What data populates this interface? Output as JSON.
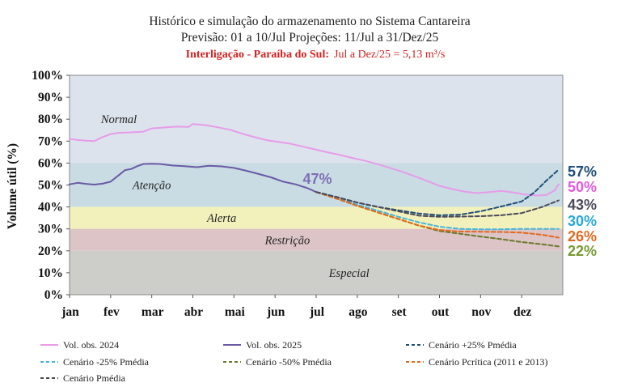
{
  "chart_data": {
    "type": "line",
    "title": "Histórico e simulação do armazenamento no Sistema Cantareira",
    "subtitle": "Previsão: 01 a 10/Jul Projeções: 11/Jul a 31/Dez/25",
    "note_bold": "Interligação - Paraíba do Sul:",
    "note_text": "Jul a Dez/25 = 5,13 m³/s",
    "ylabel": "Volume útil (%)",
    "xlabel": "",
    "ylim": [
      0,
      100
    ],
    "yticks": [
      "0%",
      "10%",
      "20%",
      "30%",
      "40%",
      "50%",
      "60%",
      "70%",
      "80%",
      "90%",
      "100%"
    ],
    "xlim": [
      0,
      12
    ],
    "months": [
      "jan",
      "fev",
      "mar",
      "abr",
      "mai",
      "jun",
      "jul",
      "ago",
      "set",
      "out",
      "nov",
      "dez"
    ],
    "zones": [
      {
        "name": "Normal",
        "from": 60,
        "to": 100,
        "color": "#dde3ed"
      },
      {
        "name": "Atenção",
        "from": 40,
        "to": 60,
        "color": "#c9dce3"
      },
      {
        "name": "Alerta",
        "from": 30,
        "to": 40,
        "color": "#f3f1bb"
      },
      {
        "name": "Restrição",
        "from": 20,
        "to": 30,
        "color": "#dcc4c7"
      },
      {
        "name": "Especial",
        "from": 0,
        "to": 20,
        "color": "#cdcdc9"
      }
    ],
    "current_label": "47%",
    "series": [
      {
        "name": "Vol. obs. 2025",
        "color": "#6a5aa5",
        "dash": false,
        "width": 2,
        "x": [
          0,
          0.2,
          0.4,
          0.6,
          0.8,
          1.0,
          1.2,
          1.35,
          1.5,
          1.65,
          1.8,
          2.0,
          2.2,
          2.5,
          2.8,
          3.1,
          3.4,
          3.7,
          4.0,
          4.3,
          4.6,
          4.9,
          5.2,
          5.5,
          5.8,
          6.0
        ],
        "y": [
          50.3,
          51,
          50.5,
          50.2,
          50.6,
          51.5,
          54.5,
          56.8,
          57.3,
          58.6,
          59.6,
          59.7,
          59.6,
          58.9,
          58.6,
          58.1,
          58.8,
          58.5,
          57.8,
          56.5,
          55,
          53.5,
          51.5,
          50.3,
          48.5,
          46.8
        ],
        "end_label": "",
        "end_color": ""
      },
      {
        "name": "Vol. obs. 2024",
        "color": "#e79be9",
        "dash": false,
        "width": 2,
        "x": [
          0,
          0.2,
          0.4,
          0.6,
          0.8,
          1.0,
          1.2,
          1.5,
          1.8,
          2.0,
          2.3,
          2.6,
          2.9,
          3.0,
          3.3,
          3.6,
          3.9,
          4.2,
          4.5,
          4.8,
          5.1,
          5.4,
          5.7,
          6.0,
          6.3,
          6.6,
          6.9,
          7.2,
          7.5,
          7.8,
          8.1,
          8.4,
          8.7,
          9.0,
          9.3,
          9.6,
          9.9,
          10.2,
          10.5,
          10.8,
          11.1,
          11.4,
          11.6,
          11.8,
          11.9
        ],
        "y": [
          71,
          70.5,
          70.2,
          70,
          71.8,
          73.2,
          73.8,
          74,
          74.3,
          75.8,
          76.2,
          76.6,
          76.5,
          77.8,
          77.3,
          76.3,
          75.2,
          73.4,
          71.8,
          70.4,
          69.6,
          68.7,
          67.4,
          66.1,
          64.8,
          63.6,
          62.2,
          61,
          59.5,
          57.8,
          56,
          54,
          51.8,
          49.6,
          48.2,
          47,
          46.3,
          46.7,
          47.3,
          46.6,
          45.6,
          45.2,
          45.5,
          47.5,
          50.3
        ],
        "end_label": "50%",
        "end_color": "#e05ce0"
      },
      {
        "name": "Cenário +25% Pmédia",
        "color": "#1f4e79",
        "dash": true,
        "width": 2,
        "x": [
          6.0,
          6.5,
          7.0,
          7.5,
          8.0,
          8.5,
          9.0,
          9.5,
          10.0,
          10.5,
          11.0,
          11.3,
          11.6,
          11.9
        ],
        "y": [
          46.8,
          44.5,
          42,
          40,
          38.5,
          37,
          36.2,
          36.5,
          38,
          40.2,
          42.5,
          46.5,
          52,
          57
        ],
        "end_label": "57%",
        "end_color": "#1f4e79"
      },
      {
        "name": "Cenário -25% Pmédia",
        "color": "#4ab5d9",
        "dash": true,
        "width": 2,
        "x": [
          6.0,
          6.5,
          7.0,
          7.5,
          8.0,
          8.5,
          9.0,
          9.5,
          10.0,
          10.5,
          11.0,
          11.5,
          11.9
        ],
        "y": [
          46.8,
          44,
          41,
          38.3,
          35.5,
          33,
          31,
          30,
          29.8,
          29.8,
          30,
          30,
          30
        ],
        "end_label": "30%",
        "end_color": "#2aa8d8"
      },
      {
        "name": "Cenário -50% Pmédia",
        "color": "#6b7a2e",
        "dash": true,
        "width": 2,
        "x": [
          6.0,
          6.5,
          7.0,
          7.5,
          8.0,
          8.5,
          9.0,
          9.5,
          10.0,
          10.5,
          11.0,
          11.5,
          11.9
        ],
        "y": [
          46.8,
          43.8,
          40.5,
          37.5,
          34.5,
          31.5,
          29,
          27.8,
          26.5,
          25.3,
          24,
          23,
          22
        ],
        "end_label": "22%",
        "end_color": "#7a9a34"
      },
      {
        "name": "Cenário Pcrítica (2011 e 2013)",
        "color": "#e06a20",
        "dash": true,
        "width": 2,
        "x": [
          6.0,
          6.5,
          7.0,
          7.5,
          8.0,
          8.5,
          9.0,
          9.5,
          10.0,
          10.5,
          11.0,
          11.5,
          11.9
        ],
        "y": [
          46.8,
          43.8,
          40.5,
          37.5,
          34.5,
          31.5,
          29.5,
          28.8,
          28.7,
          28.6,
          28.3,
          27.3,
          26
        ],
        "end_label": "26%",
        "end_color": "#e06a20"
      },
      {
        "name": "Cenário Pmédia",
        "color": "#4a4a5a",
        "dash": true,
        "width": 2,
        "x": [
          6.0,
          6.5,
          7.0,
          7.5,
          8.0,
          8.5,
          9.0,
          9.5,
          10.0,
          10.5,
          11.0,
          11.5,
          11.9
        ],
        "y": [
          46.8,
          44.5,
          42,
          40,
          38,
          36,
          35.5,
          35.6,
          35.8,
          36.2,
          37.2,
          40,
          43
        ],
        "end_label": "43%",
        "end_color": "#4a4a5a"
      }
    ],
    "legend_order": [
      1,
      0,
      2,
      3,
      4,
      5,
      6
    ]
  }
}
